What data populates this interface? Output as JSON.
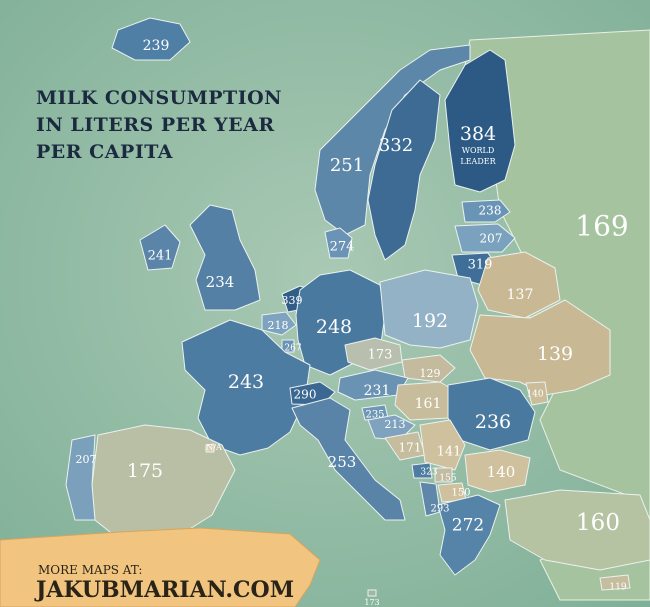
{
  "title": [
    "MILK CONSUMPTION",
    "IN LITERS PER YEAR",
    "PER CAPITA"
  ],
  "footer": {
    "line1": "MORE MAPS AT:",
    "line2": "JAKUBMARIAN.COM"
  },
  "finland_note": [
    "WORLD",
    "LEADER"
  ],
  "countries": [
    {
      "id": "iceland",
      "label": "239"
    },
    {
      "id": "norway",
      "label": "251"
    },
    {
      "id": "sweden",
      "label": "332"
    },
    {
      "id": "finland",
      "label": "384"
    },
    {
      "id": "estonia",
      "label": "238"
    },
    {
      "id": "latvia",
      "label": "207"
    },
    {
      "id": "lithuania",
      "label": "319"
    },
    {
      "id": "russia",
      "label": "169"
    },
    {
      "id": "denmark",
      "label": "274"
    },
    {
      "id": "ireland",
      "label": "241"
    },
    {
      "id": "uk",
      "label": "234"
    },
    {
      "id": "netherlands",
      "label": "339"
    },
    {
      "id": "belgium",
      "label": "218"
    },
    {
      "id": "luxembourg",
      "label": "267"
    },
    {
      "id": "germany",
      "label": "248"
    },
    {
      "id": "poland",
      "label": "192"
    },
    {
      "id": "belarus",
      "label": "137"
    },
    {
      "id": "ukraine",
      "label": "139"
    },
    {
      "id": "czechia",
      "label": "173"
    },
    {
      "id": "slovakia",
      "label": "129"
    },
    {
      "id": "austria",
      "label": "231"
    },
    {
      "id": "hungary",
      "label": "161"
    },
    {
      "id": "moldova",
      "label": "140"
    },
    {
      "id": "romania",
      "label": "236"
    },
    {
      "id": "france",
      "label": "243"
    },
    {
      "id": "switzerland",
      "label": "290"
    },
    {
      "id": "slovenia",
      "label": "235"
    },
    {
      "id": "croatia",
      "label": "213"
    },
    {
      "id": "bosnia",
      "label": "171"
    },
    {
      "id": "serbia",
      "label": "141"
    },
    {
      "id": "montenegro",
      "label": "323"
    },
    {
      "id": "kosovo",
      "label": "155"
    },
    {
      "id": "macedonia",
      "label": "150"
    },
    {
      "id": "albania",
      "label": "293"
    },
    {
      "id": "bulgaria",
      "label": "140"
    },
    {
      "id": "greece",
      "label": "272"
    },
    {
      "id": "turkey",
      "label": "160"
    },
    {
      "id": "cyprus",
      "label": "119"
    },
    {
      "id": "italy",
      "label": "253"
    },
    {
      "id": "malta",
      "label": "173"
    },
    {
      "id": "spain",
      "label": "175"
    },
    {
      "id": "portugal",
      "label": "207"
    },
    {
      "id": "andorra",
      "label": "N/A"
    }
  ]
}
